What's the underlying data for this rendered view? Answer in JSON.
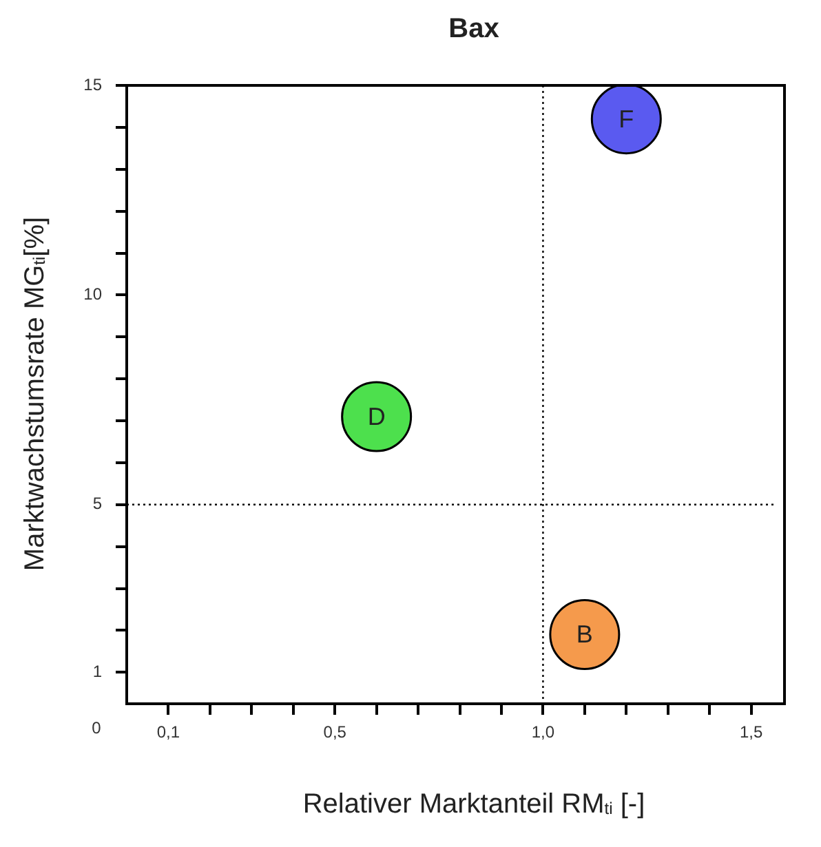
{
  "chart_data": {
    "type": "bubble",
    "title": "Bax",
    "xlabel": "Relativer Marktanteil RM$_{ti}$ [-]",
    "ylabel": "Marktwachstumsrate MG$_{ti}$[%]",
    "series": [
      {
        "name": "D",
        "color": "#4de04d",
        "x": [
          0.6
        ],
        "values": [
          7.1
        ],
        "sizes": [
          1
        ]
      },
      {
        "name": "F",
        "color": "#5a5af0",
        "x": [
          1.2
        ],
        "values": [
          14.2
        ],
        "sizes": [
          1
        ]
      },
      {
        "name": "B",
        "color": "#f59a4c",
        "x": [
          1.1
        ],
        "values": [
          1.9
        ],
        "sizes": [
          1
        ]
      }
    ],
    "xlim": [
      0,
      1.58
    ],
    "xticks": [
      {
        "value": 0.1,
        "label": "0,1"
      },
      {
        "value": 0.2,
        "label": null
      },
      {
        "value": 0.3,
        "label": null
      },
      {
        "value": 0.4,
        "label": null
      },
      {
        "value": 0.5,
        "label": "0,5"
      },
      {
        "value": 0.6,
        "label": null
      },
      {
        "value": 0.7,
        "label": null
      },
      {
        "value": 0.8,
        "label": null
      },
      {
        "value": 0.9,
        "label": null
      },
      {
        "value": 1.0,
        "label": "1,0"
      },
      {
        "value": 1.1,
        "label": null
      },
      {
        "value": 1.2,
        "label": null
      },
      {
        "value": 1.3,
        "label": null
      },
      {
        "value": 1.4,
        "label": null
      },
      {
        "value": 1.5,
        "label": "1,5"
      }
    ],
    "ylim": [
      0.25,
      15
    ],
    "yticks": [
      1,
      {
        "value": 2,
        "label": null
      },
      {
        "value": 3,
        "label": null
      },
      {
        "value": 4,
        "label": null
      },
      5,
      {
        "value": 6,
        "label": null
      },
      {
        "value": 7,
        "label": null
      },
      {
        "value": 8,
        "label": null
      },
      {
        "value": 9,
        "label": null
      },
      10,
      {
        "value": 11,
        "label": null
      },
      {
        "value": 12,
        "label": null
      },
      {
        "value": 13,
        "label": null
      },
      {
        "value": 14,
        "label": null
      },
      15
    ],
    "ref_lines": [
      {
        "axis": "x",
        "value": 1.0,
        "color": "#000000",
        "line_style": "dotted"
      },
      {
        "axis": "y",
        "value": 5,
        "color": "#000000",
        "line_style": "dotted"
      }
    ],
    "annotations": [
      "0"
    ],
    "grid": false,
    "legend": false
  }
}
